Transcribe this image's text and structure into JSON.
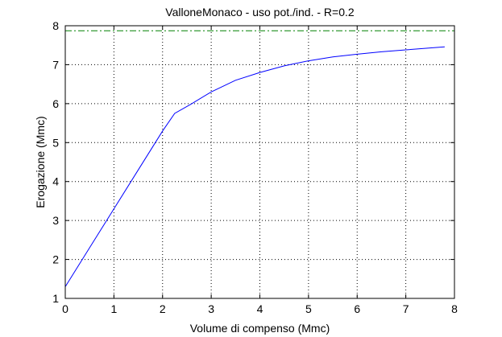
{
  "chart_data": {
    "type": "line",
    "title": "ValloneMonaco  -  uso pot./ind.  -   R=0.2",
    "xlabel": "Volume di compenso (Mmc)",
    "ylabel": "Erogazione (Mmc)",
    "xlim": [
      0,
      8
    ],
    "ylim": [
      1,
      8
    ],
    "xticks": [
      "0",
      "1",
      "2",
      "3",
      "4",
      "5",
      "6",
      "7",
      "8"
    ],
    "yticks": [
      "1",
      "2",
      "3",
      "4",
      "5",
      "6",
      "7",
      "8"
    ],
    "grid": true,
    "grid_style": "dotted",
    "legend": "none",
    "series": [
      {
        "color": "#0000ff",
        "style": "solid",
        "x": [
          0,
          0.5,
          1.0,
          1.5,
          2.0,
          2.25,
          2.6,
          3.0,
          3.5,
          4.0,
          4.5,
          5.0,
          5.5,
          6.0,
          6.5,
          7.0,
          7.5,
          7.8
        ],
        "y": [
          1.3,
          2.3,
          3.3,
          4.3,
          5.3,
          5.75,
          6.0,
          6.3,
          6.6,
          6.8,
          6.97,
          7.1,
          7.2,
          7.27,
          7.33,
          7.38,
          7.43,
          7.46
        ]
      },
      {
        "color": "#008000",
        "style": "dash-dot",
        "x": [
          0,
          8
        ],
        "y": [
          7.87,
          7.87
        ]
      }
    ]
  }
}
